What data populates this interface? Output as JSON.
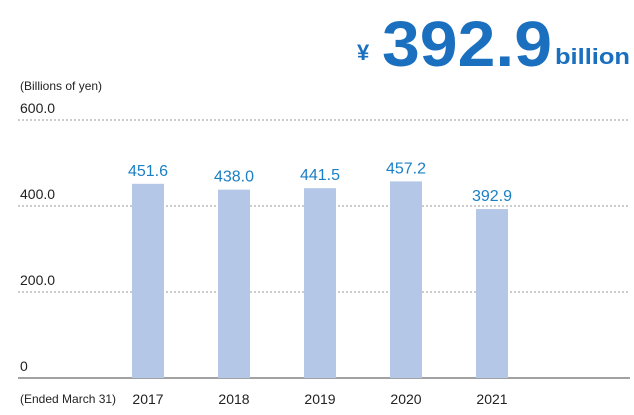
{
  "chart_data": {
    "type": "bar",
    "headline": {
      "prefix": "¥",
      "value": "392.9",
      "unit": "billion"
    },
    "y_axis_label": "(Billions of yen)",
    "x_axis_label": "(Ended March 31)",
    "categories": [
      "2017",
      "2018",
      "2019",
      "2020",
      "2021"
    ],
    "values": [
      451.6,
      438.0,
      441.5,
      457.2,
      392.9
    ],
    "value_labels": [
      "451.6",
      "438.0",
      "441.5",
      "457.2",
      "392.9"
    ],
    "color": "#b4c7e7",
    "label_color": "#1a7fc4",
    "ylim": [
      0,
      600
    ],
    "yticks": [
      0,
      {
        "value": 200,
        "label": "200.0"
      },
      {
        "value": 400,
        "label": "400.0"
      },
      {
        "value": 600,
        "label": "600.0"
      }
    ],
    "grid": true
  }
}
